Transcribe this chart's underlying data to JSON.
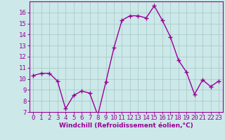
{
  "x": [
    0,
    1,
    2,
    3,
    4,
    5,
    6,
    7,
    8,
    9,
    10,
    11,
    12,
    13,
    14,
    15,
    16,
    17,
    18,
    19,
    20,
    21,
    22,
    23
  ],
  "y": [
    10.3,
    10.5,
    10.5,
    9.8,
    7.3,
    8.5,
    8.9,
    8.7,
    6.7,
    9.7,
    12.8,
    15.3,
    15.7,
    15.7,
    15.5,
    16.6,
    15.3,
    13.8,
    11.7,
    10.6,
    8.6,
    9.9,
    9.3,
    9.8
  ],
  "line_color": "#990099",
  "marker": "+",
  "marker_size": 4,
  "line_width": 1.0,
  "background_color": "#cce8e8",
  "grid_color": "#aacccc",
  "xlabel": "Windchill (Refroidissement éolien,°C)",
  "xlabel_fontsize": 6.5,
  "xlabel_color": "#990099",
  "tick_fontsize": 6.5,
  "tick_color": "#990099",
  "xlim": [
    -0.5,
    23.5
  ],
  "ylim": [
    7,
    17
  ],
  "yticks": [
    7,
    8,
    9,
    10,
    11,
    12,
    13,
    14,
    15,
    16
  ],
  "xticks": [
    0,
    1,
    2,
    3,
    4,
    5,
    6,
    7,
    8,
    9,
    10,
    11,
    12,
    13,
    14,
    15,
    16,
    17,
    18,
    19,
    20,
    21,
    22,
    23
  ]
}
